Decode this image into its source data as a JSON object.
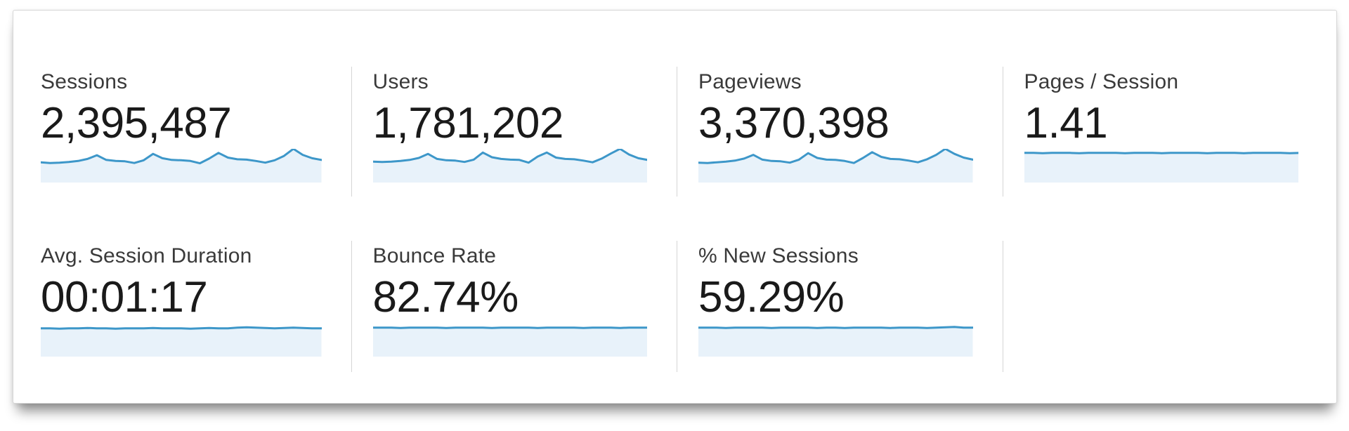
{
  "panel": {
    "description": "Google Analytics audience overview metric summary panel"
  },
  "colors": {
    "spark_line": "#3d97c9",
    "spark_fill": "#e8f2fa",
    "divider": "#d5d5d5",
    "panel_border": "#d6d6d6",
    "label_text": "#3a3a3a",
    "value_text": "#1a1a1a",
    "background": "#ffffff"
  },
  "chart_data": [
    {
      "type": "area",
      "title": "Sessions",
      "value": "2,395,487",
      "x_axis": "time (daily, no tick labels shown)",
      "y_axis": "unlabeled sparkline, baseline 0, values relative to period max (100)",
      "points_relative": [
        60,
        58,
        59,
        61,
        64,
        70,
        81,
        67,
        64,
        63,
        58,
        66,
        85,
        72,
        67,
        66,
        64,
        57,
        71,
        88,
        74,
        69,
        68,
        64,
        59,
        66,
        79,
        100,
        82,
        72,
        67
      ]
    },
    {
      "type": "area",
      "title": "Users",
      "value": "1,781,202",
      "x_axis": "time (daily, no tick labels shown)",
      "y_axis": "unlabeled sparkline, baseline 0, values relative to period max (100)",
      "points_relative": [
        62,
        61,
        62,
        64,
        67,
        73,
        85,
        70,
        66,
        65,
        61,
        68,
        89,
        75,
        70,
        68,
        67,
        59,
        77,
        89,
        74,
        70,
        69,
        65,
        60,
        71,
        86,
        100,
        83,
        72,
        67
      ]
    },
    {
      "type": "area",
      "title": "Pageviews",
      "value": "3,370,398",
      "x_axis": "time (daily, no tick labels shown)",
      "y_axis": "unlabeled sparkline, baseline 0, values relative to period max (100)",
      "points_relative": [
        59,
        58,
        60,
        62,
        65,
        71,
        82,
        68,
        64,
        63,
        59,
        68,
        87,
        73,
        68,
        67,
        64,
        58,
        73,
        90,
        76,
        70,
        69,
        65,
        60,
        69,
        82,
        100,
        85,
        74,
        68
      ]
    },
    {
      "type": "area",
      "title": "Pages / Session",
      "value": "1.41",
      "x_axis": "time (daily, no tick labels shown)",
      "y_axis": "unlabeled sparkline, nearly constant value",
      "points_relative": [
        88,
        88,
        87,
        88,
        88,
        88,
        87,
        88,
        88,
        88,
        88,
        87,
        88,
        88,
        88,
        87,
        88,
        88,
        88,
        88,
        87,
        88,
        88,
        88,
        87,
        88,
        88,
        88,
        88,
        87,
        88
      ]
    },
    {
      "type": "area",
      "title": "Avg. Session Duration",
      "value": "00:01:17",
      "x_axis": "time (daily, no tick labels shown)",
      "y_axis": "unlabeled sparkline, nearly constant value with slight rise near end",
      "points_relative": [
        84,
        84,
        83,
        84,
        84,
        85,
        84,
        84,
        83,
        84,
        84,
        84,
        85,
        84,
        84,
        84,
        83,
        84,
        85,
        84,
        84,
        86,
        87,
        86,
        85,
        84,
        85,
        86,
        85,
        84,
        84
      ]
    },
    {
      "type": "area",
      "title": "Bounce Rate",
      "value": "82.74%",
      "x_axis": "time (daily, no tick labels shown)",
      "y_axis": "unlabeled sparkline, nearly constant value",
      "points_relative": [
        86,
        86,
        86,
        85,
        86,
        86,
        86,
        86,
        85,
        86,
        86,
        86,
        86,
        85,
        86,
        86,
        86,
        86,
        85,
        86,
        86,
        86,
        86,
        85,
        86,
        86,
        86,
        85,
        86,
        86,
        86
      ]
    },
    {
      "type": "area",
      "title": "% New Sessions",
      "value": "59.29%",
      "x_axis": "time (daily, no tick labels shown)",
      "y_axis": "unlabeled sparkline, nearly constant value with tiny bump near end",
      "points_relative": [
        86,
        86,
        86,
        85,
        86,
        86,
        86,
        86,
        85,
        86,
        86,
        86,
        86,
        85,
        86,
        86,
        85,
        86,
        86,
        86,
        86,
        85,
        86,
        86,
        86,
        85,
        86,
        87,
        88,
        86,
        86
      ]
    }
  ]
}
